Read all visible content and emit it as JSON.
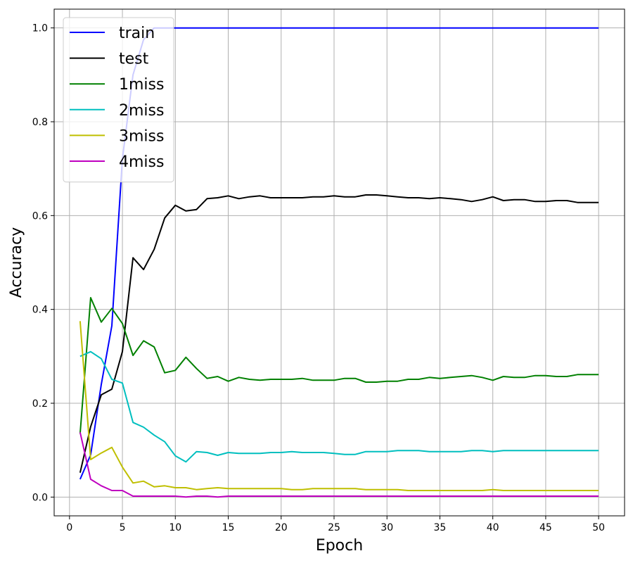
{
  "chart_data": {
    "type": "line",
    "title": "",
    "xlabel": "Epoch",
    "ylabel": "Accuracy",
    "xlim": [
      -1.45,
      52.45
    ],
    "ylim": [
      -0.04,
      1.04
    ],
    "xticks": [
      0,
      5,
      10,
      15,
      20,
      25,
      30,
      35,
      40,
      45,
      50
    ],
    "yticks": [
      0.0,
      0.2,
      0.4,
      0.6,
      0.8,
      1.0
    ],
    "xtick_labels": [
      "0",
      "5",
      "10",
      "15",
      "20",
      "25",
      "30",
      "35",
      "40",
      "45",
      "50"
    ],
    "ytick_labels": [
      "0.0",
      "0.2",
      "0.4",
      "0.6",
      "0.8",
      "1.0"
    ],
    "grid": true,
    "legend_position": "top-left",
    "x": [
      1,
      2,
      3,
      4,
      5,
      6,
      7,
      8,
      9,
      10,
      11,
      12,
      13,
      14,
      15,
      16,
      17,
      18,
      19,
      20,
      21,
      22,
      23,
      24,
      25,
      26,
      27,
      28,
      29,
      30,
      31,
      32,
      33,
      34,
      35,
      36,
      37,
      38,
      39,
      40,
      41,
      42,
      43,
      44,
      45,
      46,
      47,
      48,
      49,
      50
    ],
    "series": [
      {
        "name": "train",
        "color": "#0000ff",
        "values": [
          0.038,
          0.09,
          0.24,
          0.365,
          0.72,
          0.9,
          0.975,
          1.0,
          1.0,
          1.0,
          1.0,
          1.0,
          1.0,
          1.0,
          1.0,
          1.0,
          1.0,
          1.0,
          1.0,
          1.0,
          1.0,
          1.0,
          1.0,
          1.0,
          1.0,
          1.0,
          1.0,
          1.0,
          1.0,
          1.0,
          1.0,
          1.0,
          1.0,
          1.0,
          1.0,
          1.0,
          1.0,
          1.0,
          1.0,
          1.0,
          1.0,
          1.0,
          1.0,
          1.0,
          1.0,
          1.0,
          1.0,
          1.0,
          1.0,
          1.0
        ]
      },
      {
        "name": "test",
        "color": "#000000",
        "values": [
          0.052,
          0.15,
          0.218,
          0.23,
          0.31,
          0.51,
          0.485,
          0.528,
          0.595,
          0.622,
          0.61,
          0.613,
          0.636,
          0.638,
          0.642,
          0.636,
          0.64,
          0.642,
          0.638,
          0.638,
          0.638,
          0.638,
          0.64,
          0.64,
          0.642,
          0.64,
          0.64,
          0.644,
          0.644,
          0.642,
          0.64,
          0.638,
          0.638,
          0.636,
          0.638,
          0.636,
          0.634,
          0.63,
          0.634,
          0.64,
          0.632,
          0.634,
          0.634,
          0.63,
          0.63,
          0.632,
          0.632,
          0.628,
          0.628,
          0.628
        ]
      },
      {
        "name": "1miss",
        "color": "#008000",
        "values": [
          0.135,
          0.425,
          0.373,
          0.402,
          0.37,
          0.302,
          0.333,
          0.32,
          0.265,
          0.27,
          0.298,
          0.274,
          0.253,
          0.257,
          0.247,
          0.255,
          0.251,
          0.249,
          0.251,
          0.251,
          0.251,
          0.253,
          0.249,
          0.249,
          0.249,
          0.253,
          0.253,
          0.245,
          0.245,
          0.247,
          0.247,
          0.251,
          0.251,
          0.255,
          0.253,
          0.255,
          0.257,
          0.259,
          0.255,
          0.249,
          0.257,
          0.255,
          0.255,
          0.259,
          0.259,
          0.257,
          0.257,
          0.261,
          0.261,
          0.261
        ]
      },
      {
        "name": "2miss",
        "color": "#00bfbf",
        "values": [
          0.3,
          0.31,
          0.295,
          0.251,
          0.243,
          0.159,
          0.149,
          0.132,
          0.118,
          0.088,
          0.075,
          0.097,
          0.095,
          0.089,
          0.095,
          0.093,
          0.093,
          0.093,
          0.095,
          0.095,
          0.097,
          0.095,
          0.095,
          0.095,
          0.093,
          0.091,
          0.091,
          0.097,
          0.097,
          0.097,
          0.099,
          0.099,
          0.099,
          0.097,
          0.097,
          0.097,
          0.097,
          0.099,
          0.099,
          0.097,
          0.099,
          0.099,
          0.099,
          0.099,
          0.099,
          0.099,
          0.099,
          0.099,
          0.099,
          0.099
        ]
      },
      {
        "name": "3miss",
        "color": "#bfbf00",
        "values": [
          0.375,
          0.08,
          0.094,
          0.106,
          0.064,
          0.03,
          0.034,
          0.022,
          0.024,
          0.02,
          0.02,
          0.016,
          0.018,
          0.02,
          0.018,
          0.018,
          0.018,
          0.018,
          0.018,
          0.018,
          0.016,
          0.016,
          0.018,
          0.018,
          0.018,
          0.018,
          0.018,
          0.016,
          0.016,
          0.016,
          0.016,
          0.014,
          0.014,
          0.014,
          0.014,
          0.014,
          0.014,
          0.014,
          0.014,
          0.016,
          0.014,
          0.014,
          0.014,
          0.014,
          0.014,
          0.014,
          0.014,
          0.014,
          0.014,
          0.014
        ]
      },
      {
        "name": "4miss",
        "color": "#bf00bf",
        "values": [
          0.138,
          0.038,
          0.024,
          0.014,
          0.014,
          0.002,
          0.002,
          0.002,
          0.002,
          0.002,
          0.0,
          0.002,
          0.002,
          0.0,
          0.002,
          0.002,
          0.002,
          0.002,
          0.002,
          0.002,
          0.002,
          0.002,
          0.002,
          0.002,
          0.002,
          0.002,
          0.002,
          0.002,
          0.002,
          0.002,
          0.002,
          0.002,
          0.002,
          0.002,
          0.002,
          0.002,
          0.002,
          0.002,
          0.002,
          0.002,
          0.002,
          0.002,
          0.002,
          0.002,
          0.002,
          0.002,
          0.002,
          0.002,
          0.002,
          0.002
        ]
      }
    ]
  }
}
